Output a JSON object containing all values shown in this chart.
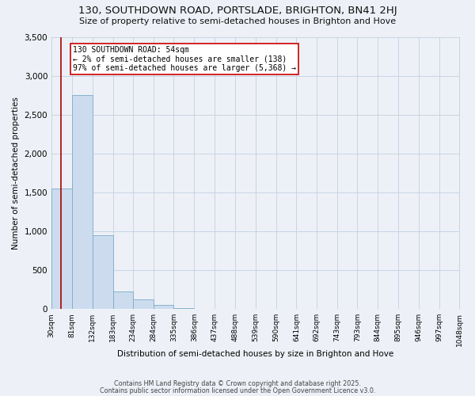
{
  "title": "130, SOUTHDOWN ROAD, PORTSLADE, BRIGHTON, BN41 2HJ",
  "subtitle": "Size of property relative to semi-detached houses in Brighton and Hove",
  "xlabel": "Distribution of semi-detached houses by size in Brighton and Hove",
  "ylabel": "Number of semi-detached properties",
  "bins": [
    30,
    81,
    132,
    183,
    234,
    284,
    335,
    386,
    437,
    488,
    539,
    590,
    641,
    692,
    743,
    793,
    844,
    895,
    946,
    997,
    1048
  ],
  "bin_labels": [
    "30sqm",
    "81sqm",
    "132sqm",
    "183sqm",
    "234sqm",
    "284sqm",
    "335sqm",
    "386sqm",
    "437sqm",
    "488sqm",
    "539sqm",
    "590sqm",
    "641sqm",
    "692sqm",
    "743sqm",
    "793sqm",
    "844sqm",
    "895sqm",
    "946sqm",
    "997sqm",
    "1048sqm"
  ],
  "values": [
    1550,
    2750,
    950,
    225,
    125,
    50,
    15,
    2,
    0,
    0,
    0,
    0,
    0,
    0,
    0,
    0,
    0,
    0,
    0,
    0
  ],
  "bar_color": "#ccdcee",
  "bar_edge_color": "#7aaac8",
  "bg_color": "#edf1f7",
  "grid_color": "#c8d4e4",
  "property_line_x": 54,
  "property_line_color": "#aa0000",
  "annotation_title": "130 SOUTHDOWN ROAD: 54sqm",
  "annotation_line1": "← 2% of semi-detached houses are smaller (138)",
  "annotation_line2": "97% of semi-detached houses are larger (5,368) →",
  "annotation_box_color": "#cc0000",
  "ylim": [
    0,
    3500
  ],
  "yticks": [
    0,
    500,
    1000,
    1500,
    2000,
    2500,
    3000,
    3500
  ],
  "footer1": "Contains HM Land Registry data © Crown copyright and database right 2025.",
  "footer2": "Contains public sector information licensed under the Open Government Licence v3.0."
}
